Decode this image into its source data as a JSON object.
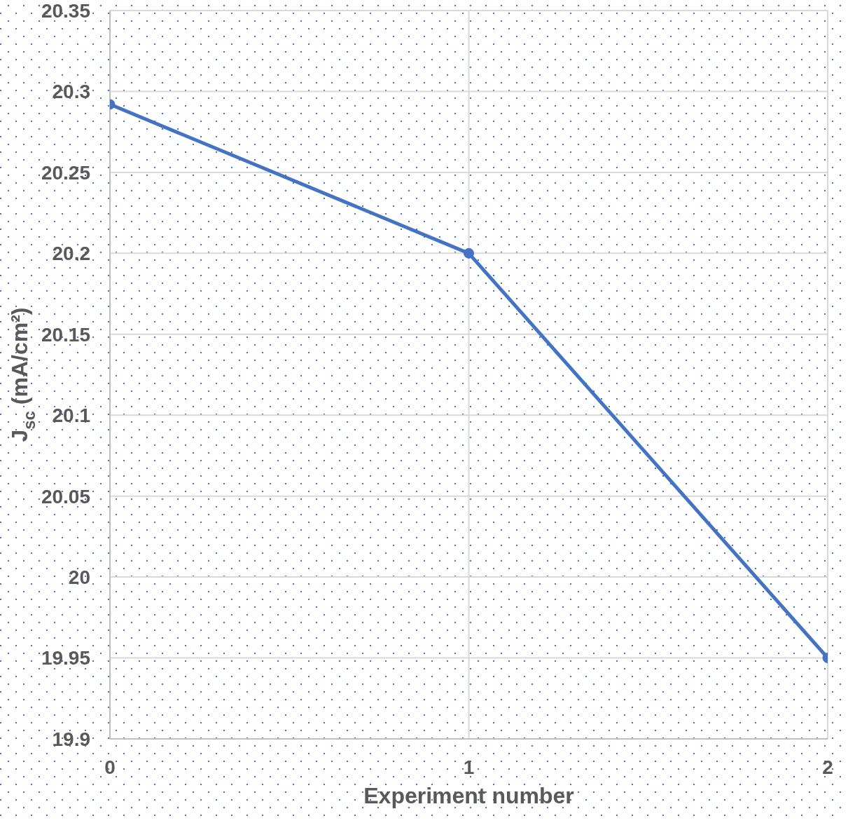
{
  "chart_data": {
    "type": "line",
    "xlabel": "Experiment number",
    "ylabel": "J$_{sc}$ (mA/cm²)",
    "x": [
      0,
      1,
      2
    ],
    "series": [
      {
        "color": "#4472c4",
        "values": [
          20.292,
          20.2,
          19.95
        ]
      }
    ],
    "xlim": [
      0,
      2
    ],
    "xticks": [
      0,
      1,
      2
    ],
    "ylim": [
      19.9,
      20.35
    ],
    "yticks": [
      19.9,
      19.95,
      20,
      20.05,
      20.1,
      20.15,
      20.2,
      20.25,
      20.3,
      20.35
    ],
    "grid": true,
    "marker": "circle"
  }
}
